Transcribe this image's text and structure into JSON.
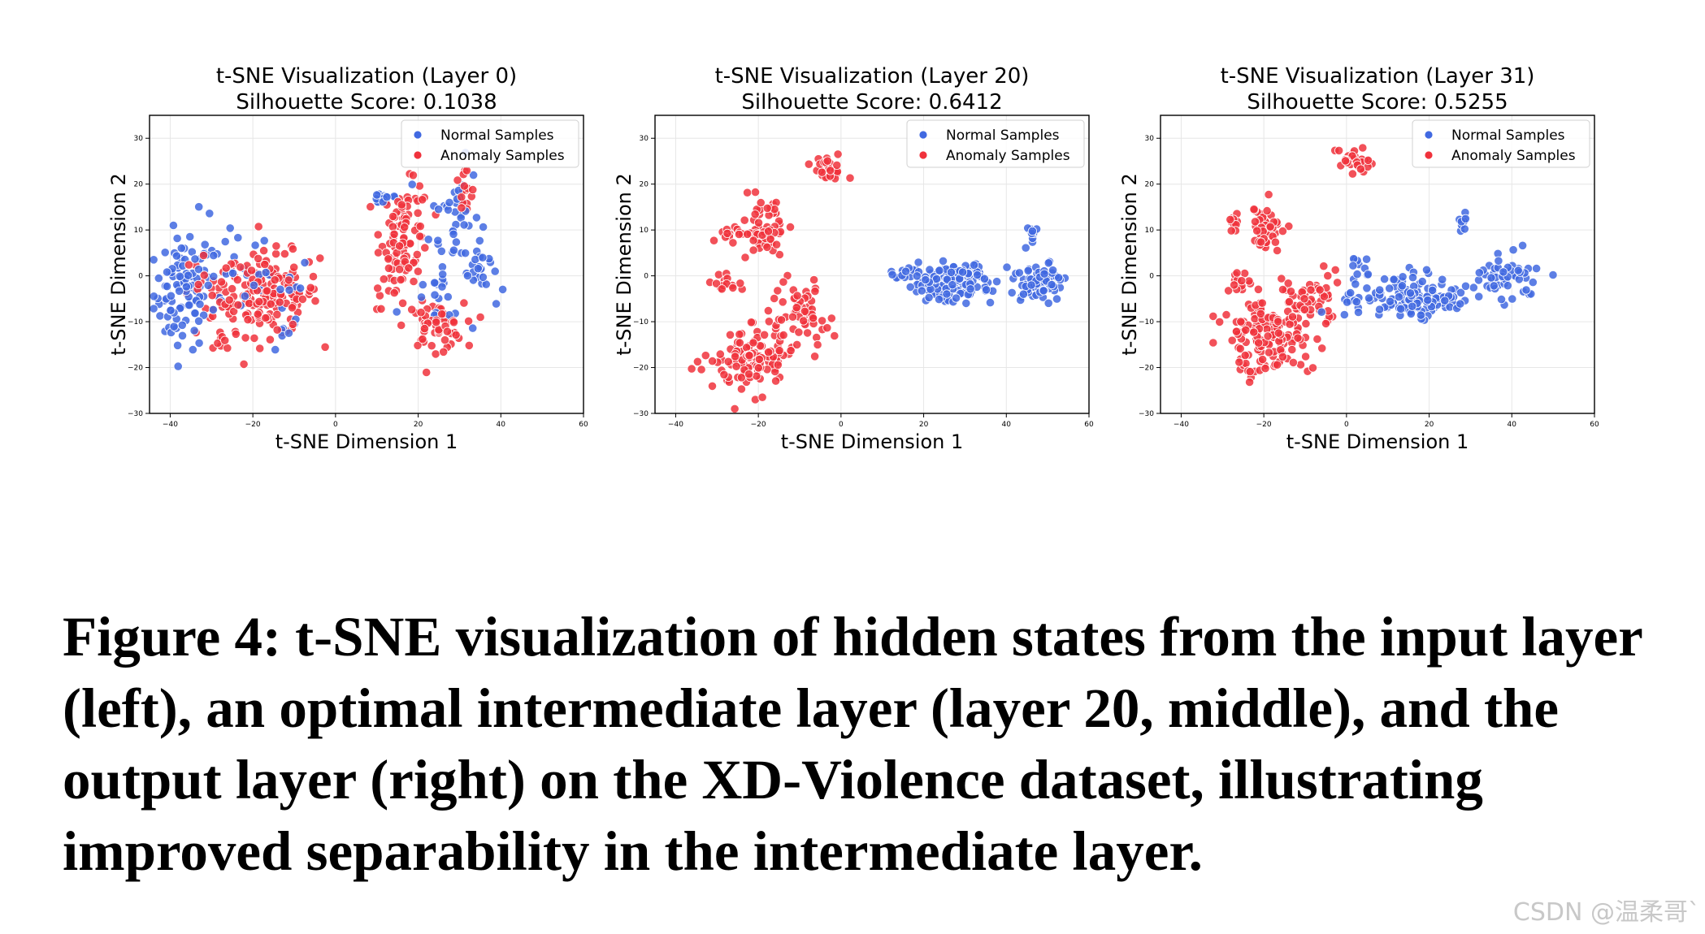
{
  "chart_data": [
    {
      "type": "scatter",
      "title": "t-SNE Visualization (Layer 0)",
      "subtitle_prefix": "Silhouette Score: ",
      "silhouette_score": "0.1038",
      "xlabel": "t-SNE Dimension 1",
      "ylabel": "t-SNE Dimension 2",
      "xlim": [
        -45,
        60
      ],
      "ylim": [
        -30,
        35
      ],
      "xticks": [
        -40,
        -20,
        0,
        20,
        40,
        60
      ],
      "yticks": [
        -30,
        -20,
        -10,
        0,
        10,
        20,
        30
      ],
      "grid": true,
      "legend_position": "top-right",
      "series": [
        {
          "name": "Normal Samples",
          "color": "#4169e1",
          "clusters": [
            {
              "cx": -37,
              "cy": -4,
              "sx": 3.5,
              "sy": 6,
              "n": 90
            },
            {
              "cx": -26,
              "cy": 2,
              "sx": 6,
              "sy": 6,
              "n": 30
            },
            {
              "cx": -15,
              "cy": -6,
              "sx": 5,
              "sy": 6,
              "n": 20
            },
            {
              "cx": 12,
              "cy": 17,
              "sx": 2,
              "sy": 0.8,
              "n": 15
            },
            {
              "cx": 29,
              "cy": 13,
              "sx": 3,
              "sy": 6,
              "n": 40
            },
            {
              "cx": 35,
              "cy": 2,
              "sx": 2,
              "sy": 2.5,
              "n": 20
            },
            {
              "cx": 25,
              "cy": -5,
              "sx": 5,
              "sy": 4,
              "n": 20
            }
          ]
        },
        {
          "name": "Anomaly Samples",
          "color": "#f0323c",
          "clusters": [
            {
              "cx": -16,
              "cy": -4,
              "sx": 6,
              "sy": 4.5,
              "n": 150
            },
            {
              "cx": -30,
              "cy": -5,
              "sx": 4,
              "sy": 5,
              "n": 30
            },
            {
              "cx": -27,
              "cy": -15,
              "sx": 1,
              "sy": 0.8,
              "n": 7
            },
            {
              "cx": 17,
              "cy": 10,
              "sx": 3,
              "sy": 5,
              "n": 70
            },
            {
              "cx": 15,
              "cy": 1,
              "sx": 3,
              "sy": 4,
              "n": 25
            },
            {
              "cx": 24,
              "cy": -11,
              "sx": 3.5,
              "sy": 2.5,
              "n": 55
            },
            {
              "cx": 31,
              "cy": 18,
              "sx": 1.5,
              "sy": 3,
              "n": 15
            }
          ]
        }
      ]
    },
    {
      "type": "scatter",
      "title": "t-SNE Visualization (Layer 20)",
      "subtitle_prefix": "Silhouette Score: ",
      "silhouette_score": "0.6412",
      "xlabel": "t-SNE Dimension 1",
      "ylabel": "t-SNE Dimension 2",
      "xlim": [
        -45,
        60
      ],
      "ylim": [
        -30,
        35
      ],
      "xticks": [
        -40,
        -20,
        0,
        20,
        40,
        60
      ],
      "yticks": [
        -30,
        -20,
        -10,
        0,
        10,
        20,
        30
      ],
      "grid": true,
      "legend_position": "top-right",
      "series": [
        {
          "name": "Normal Samples",
          "color": "#4169e1",
          "clusters": [
            {
              "cx": 26,
              "cy": -1.5,
              "sx": 5,
              "sy": 2,
              "n": 150
            },
            {
              "cx": 48,
              "cy": -1.5,
              "sx": 3,
              "sy": 2,
              "n": 70
            },
            {
              "cx": 46,
              "cy": 9,
              "sx": 0.8,
              "sy": 1.5,
              "n": 10
            },
            {
              "cx": 15,
              "cy": 0,
              "sx": 1.5,
              "sy": 0.6,
              "n": 8
            }
          ]
        },
        {
          "name": "Anomaly Samples",
          "color": "#f0323c",
          "clusters": [
            {
              "cx": -22,
              "cy": -18,
              "sx": 4.5,
              "sy": 3,
              "n": 120
            },
            {
              "cx": -10,
              "cy": -8,
              "sx": 3.5,
              "sy": 4,
              "n": 60
            },
            {
              "cx": -19,
              "cy": 10,
              "sx": 3,
              "sy": 3,
              "n": 60
            },
            {
              "cx": -3,
              "cy": 23,
              "sx": 2,
              "sy": 1.5,
              "n": 35
            },
            {
              "cx": -28,
              "cy": -1.5,
              "sx": 1.5,
              "sy": 1.2,
              "n": 15
            },
            {
              "cx": -27,
              "cy": 9,
              "sx": 1.5,
              "sy": 1,
              "n": 10
            }
          ]
        }
      ]
    },
    {
      "type": "scatter",
      "title": "t-SNE Visualization (Layer 31)",
      "subtitle_prefix": "Silhouette Score: ",
      "silhouette_score": "0.5255",
      "xlabel": "t-SNE Dimension 1",
      "ylabel": "t-SNE Dimension 2",
      "xlim": [
        -45,
        60
      ],
      "ylim": [
        -30,
        35
      ],
      "xticks": [
        -40,
        -20,
        0,
        20,
        40,
        60
      ],
      "yticks": [
        -30,
        -20,
        -10,
        0,
        10,
        20,
        30
      ],
      "grid": true,
      "legend_position": "top-right",
      "series": [
        {
          "name": "Normal Samples",
          "color": "#4169e1",
          "clusters": [
            {
              "cx": 15,
              "cy": -5,
              "sx": 7,
              "sy": 2.5,
              "n": 150
            },
            {
              "cx": 39,
              "cy": 0,
              "sx": 3.5,
              "sy": 3,
              "n": 50
            },
            {
              "cx": 28,
              "cy": 11,
              "sx": 1,
              "sy": 1.5,
              "n": 10
            },
            {
              "cx": 3,
              "cy": 2,
              "sx": 2,
              "sy": 1.5,
              "n": 10
            }
          ]
        },
        {
          "name": "Anomaly Samples",
          "color": "#f0323c",
          "clusters": [
            {
              "cx": -19,
              "cy": -13,
              "sx": 5,
              "sy": 4,
              "n": 150
            },
            {
              "cx": -9,
              "cy": -5,
              "sx": 4,
              "sy": 3,
              "n": 50
            },
            {
              "cx": -19,
              "cy": 10,
              "sx": 2,
              "sy": 3,
              "n": 50
            },
            {
              "cx": 2,
              "cy": 25,
              "sx": 2.5,
              "sy": 2,
              "n": 35
            },
            {
              "cx": -27,
              "cy": 12,
              "sx": 1,
              "sy": 1.5,
              "n": 10
            },
            {
              "cx": -26,
              "cy": -1,
              "sx": 1.5,
              "sy": 1.5,
              "n": 10
            }
          ]
        }
      ]
    }
  ],
  "caption": "Figure 4: t-SNE visualization of hidden states from the input layer (left), an optimal intermediate layer (layer 20, middle), and the output layer (right) on the XD-Violence dataset, illustrating improved separability in the intermediate layer.",
  "watermark": "CSDN @温柔哥`"
}
